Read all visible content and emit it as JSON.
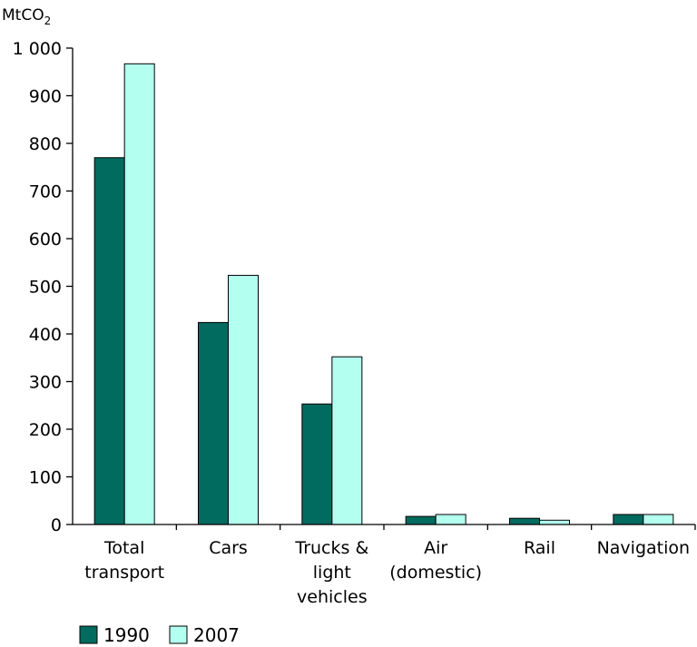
{
  "chart_data": {
    "type": "bar",
    "title": "",
    "xlabel": "",
    "ylabel": "MtCO",
    "ylabel_subscript": "2",
    "ylim": [
      0,
      1000
    ],
    "yticks": [
      0,
      100,
      200,
      300,
      400,
      500,
      600,
      700,
      800,
      900,
      1000
    ],
    "ytick_labels": [
      "0",
      "100",
      "200",
      "300",
      "400",
      "500",
      "600",
      "700",
      "800",
      "900",
      "1 000"
    ],
    "categories": [
      [
        "Total",
        "transport"
      ],
      [
        "Cars"
      ],
      [
        "Trucks &",
        "light",
        "vehicles"
      ],
      [
        "Air",
        "(domestic)"
      ],
      [
        "Rail"
      ],
      [
        "Navigation"
      ]
    ],
    "series": [
      {
        "name": "1990",
        "color": "#006b5e",
        "values": [
          770,
          424,
          253,
          17,
          13,
          21
        ]
      },
      {
        "name": "2007",
        "color": "#b3fff0",
        "values": [
          967,
          523,
          352,
          21,
          9,
          21
        ]
      }
    ],
    "legend_position": "bottom-left",
    "grid": false
  }
}
